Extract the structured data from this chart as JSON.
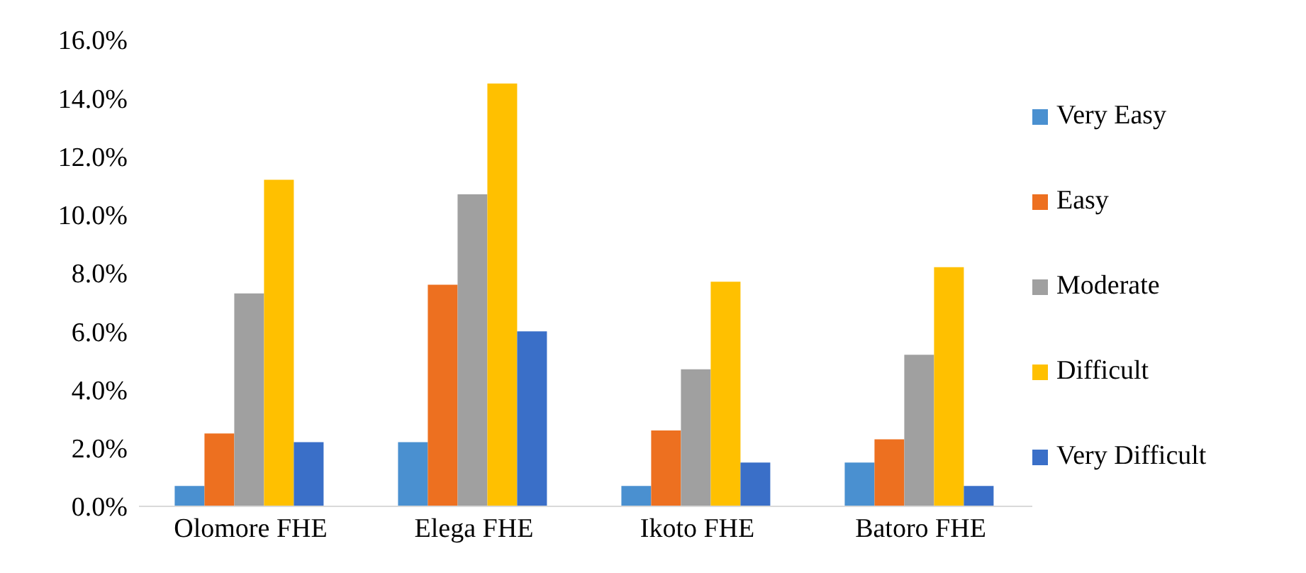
{
  "chart_data": {
    "type": "bar",
    "categories": [
      "Olomore FHE",
      "Elega FHE",
      "Ikoto FHE",
      "Batoro FHE"
    ],
    "series": [
      {
        "name": "Very Easy",
        "color": "#4a90d0",
        "values": [
          0.7,
          2.2,
          0.7,
          1.5
        ]
      },
      {
        "name": "Easy",
        "color": "#ed7020",
        "values": [
          2.5,
          7.6,
          2.6,
          2.3
        ]
      },
      {
        "name": "Moderate",
        "color": "#a0a0a0",
        "values": [
          7.3,
          10.7,
          4.7,
          5.2
        ]
      },
      {
        "name": "Difficult",
        "color": "#ffc000",
        "values": [
          11.2,
          14.5,
          7.7,
          8.2
        ]
      },
      {
        "name": "Very Difficult",
        "color": "#3a6fc8",
        "values": [
          2.2,
          6.0,
          1.5,
          0.7
        ]
      }
    ],
    "ylim": [
      0,
      16
    ],
    "yticks": [
      {
        "value": 0,
        "label": "0.0%"
      },
      {
        "value": 2,
        "label": "2.0%"
      },
      {
        "value": 4,
        "label": "4.0%"
      },
      {
        "value": 6,
        "label": "6.0%"
      },
      {
        "value": 8,
        "label": "8.0%"
      },
      {
        "value": 10,
        "label": "10.0%"
      },
      {
        "value": 12,
        "label": "12.0%"
      },
      {
        "value": 14,
        "label": "14.0%"
      },
      {
        "value": 16,
        "label": "16.0%"
      }
    ],
    "grid": false,
    "legend": "right"
  }
}
